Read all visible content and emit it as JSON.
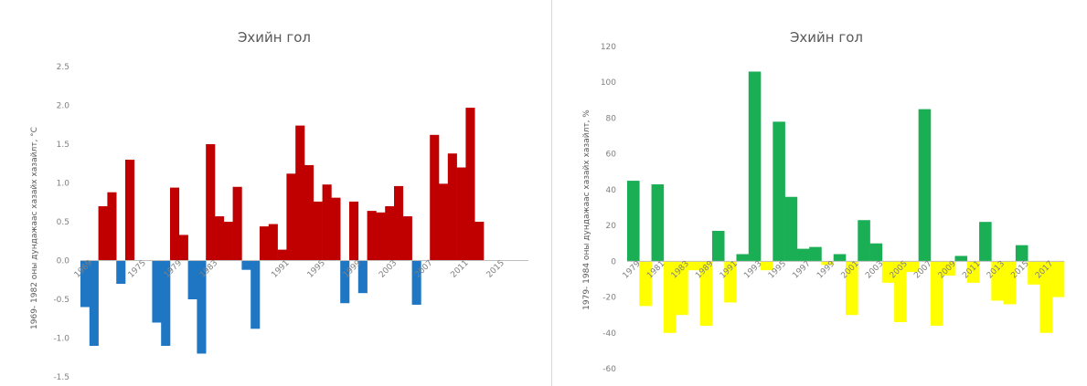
{
  "chart_data": [
    {
      "type": "bar",
      "title": "Эхийн гол",
      "ylabel": "1969- 1982 оны дундажаас хазайх хазайлт, °C",
      "xlabel": "",
      "ylim": [
        -1.5,
        2.5
      ],
      "yticks": [
        2.5,
        2.0,
        1.5,
        1.0,
        0.5,
        0.0,
        -0.5,
        -1.0,
        -1.5
      ],
      "ytick_labels": [
        "2.5",
        "2.0",
        "1.5",
        "1.0",
        "0.5",
        "0.0",
        "-0.5",
        "-1.0",
        "-1.5"
      ],
      "xtick_labels": [
        {
          "label": "1969",
          "index": 0
        },
        {
          "label": "1975",
          "index": 6
        },
        {
          "label": "1979",
          "index": 10
        },
        {
          "label": "1983",
          "index": 14
        },
        {
          "label": "1991",
          "index": 22
        },
        {
          "label": "1995",
          "index": 26
        },
        {
          "label": "1999",
          "index": 30
        },
        {
          "label": "2003",
          "index": 34
        },
        {
          "label": "2007",
          "index": 38
        },
        {
          "label": "2011",
          "index": 42
        },
        {
          "label": "2015",
          "index": 46
        }
      ],
      "categories": [
        "1969",
        "1970",
        "1971",
        "1972",
        "1973",
        "1974",
        "1975",
        "1976",
        "1977",
        "1978",
        "1979",
        "1980",
        "1981",
        "1982",
        "1983",
        "1984",
        "1985",
        "1986",
        "1987",
        "1988",
        "1989",
        "1990",
        "1991",
        "1992",
        "1993",
        "1994",
        "1995",
        "1996",
        "1997",
        "1998",
        "1999",
        "2000",
        "2001",
        "2002",
        "2003",
        "2004",
        "2005",
        "2006",
        "2007",
        "2008",
        "2009",
        "2010",
        "2011",
        "2012",
        "2013",
        "2014",
        "2015",
        "2016",
        "2017",
        "2018"
      ],
      "values": [
        -0.6,
        -1.1,
        0.7,
        0.88,
        -0.3,
        1.3,
        0,
        0,
        -0.8,
        -1.1,
        0.94,
        0.33,
        -0.5,
        -1.2,
        1.5,
        0.57,
        0.5,
        0.95,
        -0.12,
        -0.88,
        0.44,
        0.47,
        0.14,
        1.12,
        1.74,
        1.23,
        0.76,
        0.98,
        0.81,
        -0.55,
        0.76,
        -0.42,
        0.64,
        0.62,
        0.7,
        0.96,
        0.57,
        -0.57,
        0,
        1.62,
        0.99,
        1.38,
        1.2,
        1.97,
        0.5,
        0,
        0,
        0,
        0,
        0
      ],
      "colors": {
        "positive": "#c00000",
        "negative": "#1f77c4"
      },
      "grid": false
    },
    {
      "type": "bar",
      "title": "Эхийн гол",
      "ylabel": "1979- 1984 оны дундажаас хазайх хазайлт, %",
      "xlabel": "",
      "ylim": [
        -60,
        120
      ],
      "yticks": [
        120,
        100,
        80,
        60,
        40,
        20,
        0,
        -20,
        -40,
        -60
      ],
      "ytick_labels": [
        "120",
        "100",
        "80",
        "60",
        "40",
        "20",
        "0",
        "-20",
        "-40",
        "-60"
      ],
      "xtick_labels": [
        {
          "label": "1979",
          "index": 0
        },
        {
          "label": "1981",
          "index": 2
        },
        {
          "label": "1983",
          "index": 4
        },
        {
          "label": "1989",
          "index": 6
        },
        {
          "label": "1991",
          "index": 8
        },
        {
          "label": "1993",
          "index": 10
        },
        {
          "label": "1995",
          "index": 12
        },
        {
          "label": "1997",
          "index": 14
        },
        {
          "label": "1999",
          "index": 16
        },
        {
          "label": "2001",
          "index": 18
        },
        {
          "label": "2003",
          "index": 20
        },
        {
          "label": "2005",
          "index": 22
        },
        {
          "label": "2007",
          "index": 24
        },
        {
          "label": "2009",
          "index": 26
        },
        {
          "label": "2011",
          "index": 28
        },
        {
          "label": "2013",
          "index": 30
        },
        {
          "label": "2015",
          "index": 32
        },
        {
          "label": "2017",
          "index": 34
        }
      ],
      "values": [
        45,
        -25,
        43,
        -40,
        -30,
        -5,
        -36,
        17,
        -23,
        4,
        106,
        -5,
        78,
        36,
        7,
        8,
        -2,
        4,
        -30,
        23,
        10,
        -12,
        -34,
        -6,
        85,
        -36,
        -8,
        3,
        -12,
        22,
        -22,
        -24,
        9,
        -13,
        -40,
        -20
      ],
      "colors": {
        "positive": "#1aaf54",
        "negative": "#ffff00"
      },
      "grid": false
    }
  ]
}
